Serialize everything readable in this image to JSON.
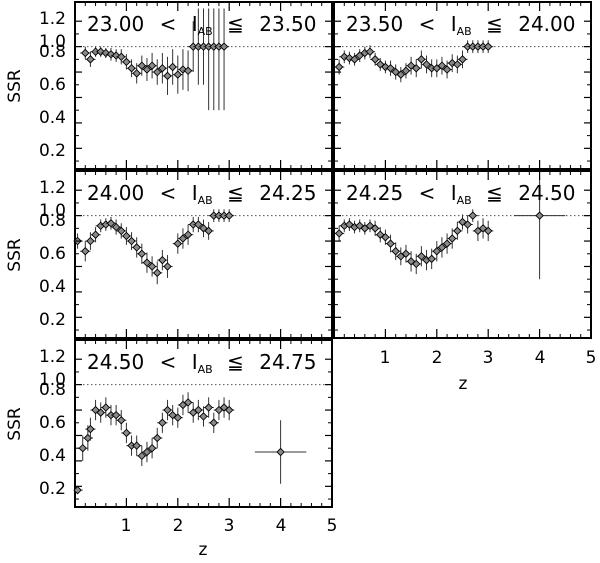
{
  "figure": {
    "ylabel": "SSR",
    "xlabel": "z",
    "y_ticks": [
      "0.2",
      "0.4",
      "0.6",
      "0.8",
      "1.0",
      "1.2"
    ],
    "x_ticks": [
      "1",
      "2",
      "3",
      "4",
      "5"
    ]
  },
  "chart_data": [
    {
      "type": "scatter",
      "title": "23.00 < I_AB ≦ 23.50",
      "title_parts": {
        "lo": "23.00",
        "hi": "23.50",
        "mag": "I",
        "sub": "AB"
      },
      "xlim": [
        0,
        5
      ],
      "ylim": [
        0,
        1.3
      ],
      "reference_line": 1.0,
      "grid": false,
      "points": [
        {
          "x": 0.2,
          "y": 0.95,
          "yerr": 0.05
        },
        {
          "x": 0.3,
          "y": 0.9,
          "yerr": 0.06
        },
        {
          "x": 0.4,
          "y": 0.96,
          "yerr": 0.04
        },
        {
          "x": 0.5,
          "y": 0.96,
          "yerr": 0.04
        },
        {
          "x": 0.6,
          "y": 0.95,
          "yerr": 0.04
        },
        {
          "x": 0.7,
          "y": 0.94,
          "yerr": 0.05
        },
        {
          "x": 0.8,
          "y": 0.93,
          "yerr": 0.05
        },
        {
          "x": 0.9,
          "y": 0.92,
          "yerr": 0.06
        },
        {
          "x": 1.0,
          "y": 0.88,
          "yerr": 0.06
        },
        {
          "x": 1.1,
          "y": 0.83,
          "yerr": 0.07
        },
        {
          "x": 1.2,
          "y": 0.79,
          "yerr": 0.08
        },
        {
          "x": 1.3,
          "y": 0.85,
          "yerr": 0.08
        },
        {
          "x": 1.4,
          "y": 0.82,
          "yerr": 0.09
        },
        {
          "x": 1.5,
          "y": 0.85,
          "yerr": 0.1
        },
        {
          "x": 1.6,
          "y": 0.8,
          "yerr": 0.1
        },
        {
          "x": 1.7,
          "y": 0.83,
          "yerr": 0.12
        },
        {
          "x": 1.8,
          "y": 0.77,
          "yerr": 0.15
        },
        {
          "x": 1.9,
          "y": 0.84,
          "yerr": 0.14
        },
        {
          "x": 2.0,
          "y": 0.78,
          "yerr": 0.15
        },
        {
          "x": 2.1,
          "y": 0.82,
          "yerr": 0.16
        },
        {
          "x": 2.2,
          "y": 0.81,
          "yerr": 0.16
        },
        {
          "x": 2.3,
          "y": 1.0,
          "yerr": 0.2
        },
        {
          "x": 2.4,
          "y": 1.0,
          "yerr": 0.3
        },
        {
          "x": 2.5,
          "y": 1.0,
          "yerr": 0.3
        },
        {
          "x": 2.6,
          "y": 1.0,
          "yerr": 0.5
        },
        {
          "x": 2.7,
          "y": 1.0,
          "yerr": 0.5
        },
        {
          "x": 2.8,
          "y": 1.0,
          "yerr": 0.5
        },
        {
          "x": 2.9,
          "y": 1.0,
          "yerr": 0.5
        }
      ]
    },
    {
      "type": "scatter",
      "title": "23.50 < I_AB ≦ 24.00",
      "title_parts": {
        "lo": "23.50",
        "hi": "24.00",
        "mag": "I",
        "sub": "AB"
      },
      "xlim": [
        0,
        5
      ],
      "ylim": [
        0,
        1.3
      ],
      "reference_line": 1.0,
      "grid": false,
      "points": [
        {
          "x": 0.1,
          "y": 0.84,
          "yerr": 0.06
        },
        {
          "x": 0.2,
          "y": 0.92,
          "yerr": 0.05
        },
        {
          "x": 0.3,
          "y": 0.91,
          "yerr": 0.05
        },
        {
          "x": 0.4,
          "y": 0.9,
          "yerr": 0.05
        },
        {
          "x": 0.5,
          "y": 0.93,
          "yerr": 0.05
        },
        {
          "x": 0.6,
          "y": 0.95,
          "yerr": 0.05
        },
        {
          "x": 0.7,
          "y": 0.96,
          "yerr": 0.05
        },
        {
          "x": 0.8,
          "y": 0.9,
          "yerr": 0.05
        },
        {
          "x": 0.9,
          "y": 0.86,
          "yerr": 0.05
        },
        {
          "x": 1.0,
          "y": 0.84,
          "yerr": 0.05
        },
        {
          "x": 1.1,
          "y": 0.83,
          "yerr": 0.06
        },
        {
          "x": 1.2,
          "y": 0.8,
          "yerr": 0.06
        },
        {
          "x": 1.3,
          "y": 0.78,
          "yerr": 0.06
        },
        {
          "x": 1.4,
          "y": 0.81,
          "yerr": 0.06
        },
        {
          "x": 1.5,
          "y": 0.85,
          "yerr": 0.07
        },
        {
          "x": 1.6,
          "y": 0.83,
          "yerr": 0.07
        },
        {
          "x": 1.7,
          "y": 0.9,
          "yerr": 0.07
        },
        {
          "x": 1.8,
          "y": 0.86,
          "yerr": 0.07
        },
        {
          "x": 1.9,
          "y": 0.83,
          "yerr": 0.07
        },
        {
          "x": 2.0,
          "y": 0.83,
          "yerr": 0.07
        },
        {
          "x": 2.1,
          "y": 0.85,
          "yerr": 0.07
        },
        {
          "x": 2.2,
          "y": 0.82,
          "yerr": 0.07
        },
        {
          "x": 2.3,
          "y": 0.87,
          "yerr": 0.07
        },
        {
          "x": 2.4,
          "y": 0.86,
          "yerr": 0.07
        },
        {
          "x": 2.5,
          "y": 0.9,
          "yerr": 0.07
        },
        {
          "x": 2.6,
          "y": 1.0,
          "yerr": 0.05
        },
        {
          "x": 2.7,
          "y": 1.0,
          "yerr": 0.05
        },
        {
          "x": 2.8,
          "y": 1.0,
          "yerr": 0.05
        },
        {
          "x": 2.9,
          "y": 1.0,
          "yerr": 0.05
        },
        {
          "x": 3.0,
          "y": 1.0,
          "yerr": 0.05
        }
      ]
    },
    {
      "type": "scatter",
      "title": "24.00 < I_AB ≦ 24.25",
      "title_parts": {
        "lo": "24.00",
        "hi": "24.25",
        "mag": "I",
        "sub": "AB"
      },
      "xlim": [
        0,
        5
      ],
      "ylim": [
        0,
        1.3
      ],
      "reference_line": 1.0,
      "grid": false,
      "points": [
        {
          "x": 0.05,
          "y": 0.8,
          "yerr": 0.06
        },
        {
          "x": 0.2,
          "y": 0.72,
          "yerr": 0.08
        },
        {
          "x": 0.3,
          "y": 0.8,
          "yerr": 0.07
        },
        {
          "x": 0.4,
          "y": 0.85,
          "yerr": 0.06
        },
        {
          "x": 0.5,
          "y": 0.92,
          "yerr": 0.05
        },
        {
          "x": 0.6,
          "y": 0.93,
          "yerr": 0.05
        },
        {
          "x": 0.7,
          "y": 0.94,
          "yerr": 0.05
        },
        {
          "x": 0.8,
          "y": 0.91,
          "yerr": 0.06
        },
        {
          "x": 0.9,
          "y": 0.88,
          "yerr": 0.06
        },
        {
          "x": 1.0,
          "y": 0.84,
          "yerr": 0.07
        },
        {
          "x": 1.1,
          "y": 0.8,
          "yerr": 0.07
        },
        {
          "x": 1.2,
          "y": 0.75,
          "yerr": 0.08
        },
        {
          "x": 1.3,
          "y": 0.7,
          "yerr": 0.08
        },
        {
          "x": 1.4,
          "y": 0.63,
          "yerr": 0.08
        },
        {
          "x": 1.5,
          "y": 0.6,
          "yerr": 0.08
        },
        {
          "x": 1.6,
          "y": 0.55,
          "yerr": 0.09
        },
        {
          "x": 1.7,
          "y": 0.65,
          "yerr": 0.08
        },
        {
          "x": 1.8,
          "y": 0.6,
          "yerr": 0.09
        },
        {
          "x": 2.0,
          "y": 0.78,
          "yerr": 0.08
        },
        {
          "x": 2.1,
          "y": 0.82,
          "yerr": 0.08
        },
        {
          "x": 2.2,
          "y": 0.85,
          "yerr": 0.08
        },
        {
          "x": 2.3,
          "y": 0.93,
          "yerr": 0.06
        },
        {
          "x": 2.4,
          "y": 0.93,
          "yerr": 0.06
        },
        {
          "x": 2.5,
          "y": 0.9,
          "yerr": 0.07
        },
        {
          "x": 2.6,
          "y": 0.88,
          "yerr": 0.07
        },
        {
          "x": 2.7,
          "y": 1.0,
          "yerr": 0.05
        },
        {
          "x": 2.8,
          "y": 1.0,
          "yerr": 0.05
        },
        {
          "x": 2.9,
          "y": 1.0,
          "yerr": 0.05
        },
        {
          "x": 3.0,
          "y": 1.0,
          "yerr": 0.05
        }
      ]
    },
    {
      "type": "scatter",
      "title": "24.25 < I_AB ≦ 24.50",
      "title_parts": {
        "lo": "24.25",
        "hi": "24.50",
        "mag": "I",
        "sub": "AB"
      },
      "xlim": [
        0,
        5
      ],
      "ylim": [
        0,
        1.3
      ],
      "reference_line": 1.0,
      "grid": false,
      "points": [
        {
          "x": 0.1,
          "y": 0.86,
          "yerr": 0.06
        },
        {
          "x": 0.2,
          "y": 0.92,
          "yerr": 0.05
        },
        {
          "x": 0.3,
          "y": 0.93,
          "yerr": 0.05
        },
        {
          "x": 0.4,
          "y": 0.91,
          "yerr": 0.05
        },
        {
          "x": 0.5,
          "y": 0.92,
          "yerr": 0.05
        },
        {
          "x": 0.6,
          "y": 0.9,
          "yerr": 0.05
        },
        {
          "x": 0.7,
          "y": 0.92,
          "yerr": 0.05
        },
        {
          "x": 0.8,
          "y": 0.9,
          "yerr": 0.06
        },
        {
          "x": 0.9,
          "y": 0.85,
          "yerr": 0.06
        },
        {
          "x": 1.0,
          "y": 0.83,
          "yerr": 0.06
        },
        {
          "x": 1.1,
          "y": 0.78,
          "yerr": 0.07
        },
        {
          "x": 1.2,
          "y": 0.72,
          "yerr": 0.07
        },
        {
          "x": 1.3,
          "y": 0.68,
          "yerr": 0.07
        },
        {
          "x": 1.4,
          "y": 0.7,
          "yerr": 0.07
        },
        {
          "x": 1.5,
          "y": 0.64,
          "yerr": 0.08
        },
        {
          "x": 1.6,
          "y": 0.62,
          "yerr": 0.08
        },
        {
          "x": 1.7,
          "y": 0.68,
          "yerr": 0.08
        },
        {
          "x": 1.8,
          "y": 0.65,
          "yerr": 0.08
        },
        {
          "x": 1.9,
          "y": 0.66,
          "yerr": 0.08
        },
        {
          "x": 2.0,
          "y": 0.72,
          "yerr": 0.08
        },
        {
          "x": 2.1,
          "y": 0.75,
          "yerr": 0.08
        },
        {
          "x": 2.2,
          "y": 0.78,
          "yerr": 0.08
        },
        {
          "x": 2.3,
          "y": 0.82,
          "yerr": 0.08
        },
        {
          "x": 2.4,
          "y": 0.88,
          "yerr": 0.07
        },
        {
          "x": 2.5,
          "y": 0.95,
          "yerr": 0.06
        },
        {
          "x": 2.6,
          "y": 0.93,
          "yerr": 0.07
        },
        {
          "x": 2.7,
          "y": 1.0,
          "yerr": 0.05
        },
        {
          "x": 2.8,
          "y": 0.88,
          "yerr": 0.08
        },
        {
          "x": 2.9,
          "y": 0.9,
          "yerr": 0.08
        },
        {
          "x": 3.0,
          "y": 0.88,
          "yerr": 0.08
        },
        {
          "x": 4.0,
          "y": 1.0,
          "yerr": 0.5,
          "xerr": 0.5
        }
      ]
    },
    {
      "type": "scatter",
      "title": "24.50 < I_AB ≦ 24.75",
      "title_parts": {
        "lo": "24.50",
        "hi": "24.75",
        "mag": "I",
        "sub": "AB"
      },
      "xlim": [
        0,
        5
      ],
      "ylim": [
        0,
        1.3
      ],
      "reference_line": 1.0,
      "grid": false,
      "points": [
        {
          "x": 0.05,
          "y": 0.17,
          "yerr": 0.03
        },
        {
          "x": 0.15,
          "y": 0.5,
          "yerr": 0.1
        },
        {
          "x": 0.25,
          "y": 0.58,
          "yerr": 0.1
        },
        {
          "x": 0.3,
          "y": 0.65,
          "yerr": 0.09
        },
        {
          "x": 0.4,
          "y": 0.8,
          "yerr": 0.08
        },
        {
          "x": 0.5,
          "y": 0.78,
          "yerr": 0.08
        },
        {
          "x": 0.6,
          "y": 0.82,
          "yerr": 0.08
        },
        {
          "x": 0.7,
          "y": 0.76,
          "yerr": 0.08
        },
        {
          "x": 0.8,
          "y": 0.76,
          "yerr": 0.08
        },
        {
          "x": 0.9,
          "y": 0.72,
          "yerr": 0.08
        },
        {
          "x": 1.0,
          "y": 0.62,
          "yerr": 0.08
        },
        {
          "x": 1.1,
          "y": 0.52,
          "yerr": 0.08
        },
        {
          "x": 1.2,
          "y": 0.52,
          "yerr": 0.08
        },
        {
          "x": 1.3,
          "y": 0.44,
          "yerr": 0.08
        },
        {
          "x": 1.4,
          "y": 0.47,
          "yerr": 0.08
        },
        {
          "x": 1.5,
          "y": 0.5,
          "yerr": 0.08
        },
        {
          "x": 1.6,
          "y": 0.58,
          "yerr": 0.08
        },
        {
          "x": 1.7,
          "y": 0.7,
          "yerr": 0.08
        },
        {
          "x": 1.8,
          "y": 0.8,
          "yerr": 0.08
        },
        {
          "x": 1.9,
          "y": 0.76,
          "yerr": 0.08
        },
        {
          "x": 2.0,
          "y": 0.74,
          "yerr": 0.08
        },
        {
          "x": 2.1,
          "y": 0.84,
          "yerr": 0.08
        },
        {
          "x": 2.2,
          "y": 0.86,
          "yerr": 0.08
        },
        {
          "x": 2.3,
          "y": 0.78,
          "yerr": 0.08
        },
        {
          "x": 2.4,
          "y": 0.8,
          "yerr": 0.08
        },
        {
          "x": 2.5,
          "y": 0.75,
          "yerr": 0.08
        },
        {
          "x": 2.6,
          "y": 0.82,
          "yerr": 0.08
        },
        {
          "x": 2.7,
          "y": 0.7,
          "yerr": 0.08
        },
        {
          "x": 2.8,
          "y": 0.8,
          "yerr": 0.08
        },
        {
          "x": 2.9,
          "y": 0.82,
          "yerr": 0.08
        },
        {
          "x": 3.0,
          "y": 0.8,
          "yerr": 0.08
        },
        {
          "x": 4.0,
          "y": 0.47,
          "yerr": 0.25,
          "xerr": 0.5
        }
      ]
    }
  ]
}
